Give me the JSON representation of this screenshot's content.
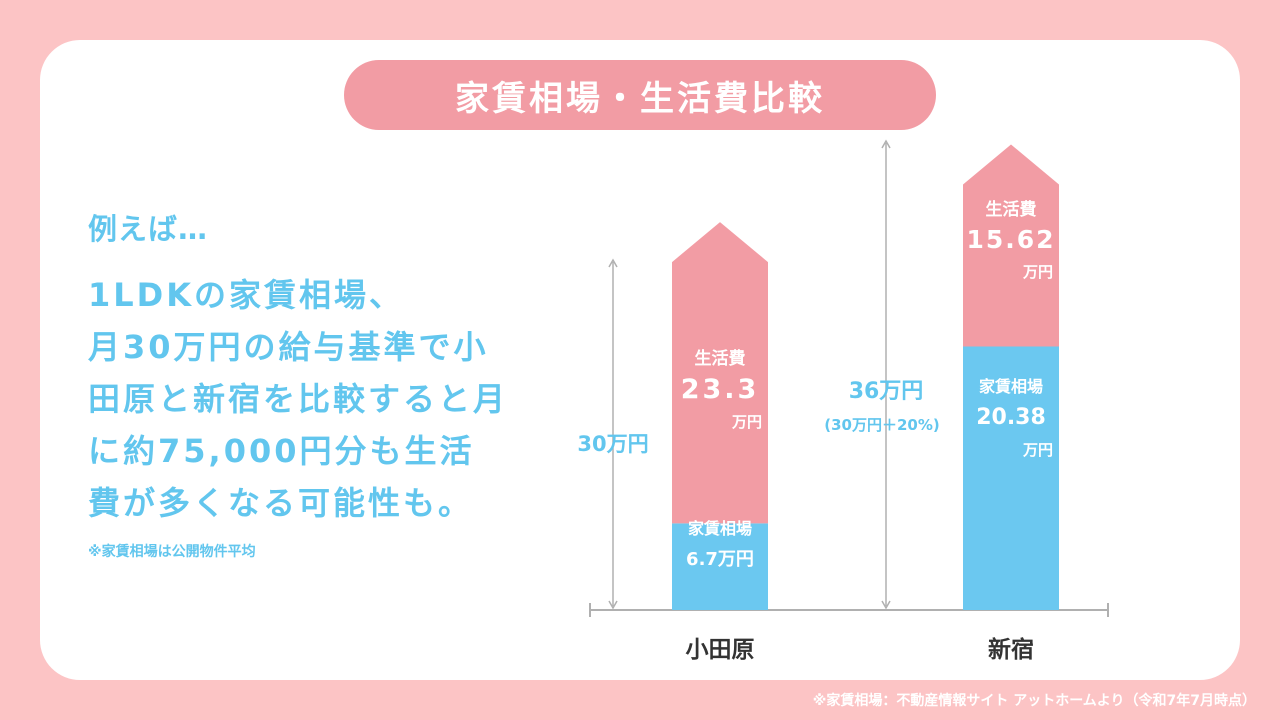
{
  "title": "家賃相場・生活費比較",
  "intro": "例えば…",
  "body_lines": [
    "1LDKの家賃相場、",
    "月30万円の給与基準で小",
    "田原と新宿を比較すると月",
    "に約75,000円分も生活",
    "費が多くなる可能性も。"
  ],
  "note": "※家賃相場は公開物件平均",
  "source": "※家賃相場：不動産情報サイト アットホームより（令和7年7月時点）",
  "colors": {
    "rent": "#6bc8f0",
    "living": "#f29ca4",
    "accent": "#62c6ee",
    "background": "#fcc4c5"
  },
  "chart_data": {
    "type": "bar",
    "stacked": true,
    "categories": [
      "小田原",
      "新宿"
    ],
    "series": [
      {
        "name": "家賃相場",
        "values": [
          6.7,
          20.38
        ]
      },
      {
        "name": "生活費",
        "values": [
          23.3,
          15.62
        ]
      }
    ],
    "totals": [
      {
        "label": "30万円",
        "sub": ""
      },
      {
        "label": "36万円",
        "sub": "(30万円＋20%)"
      }
    ],
    "labels": {
      "odawara_living_name": "生活費",
      "odawara_living_value": "23.3",
      "odawara_living_unit": "万円",
      "odawara_rent_name": "家賃相場",
      "odawara_rent_value": "6.7万円",
      "shinjuku_living_name": "生活費",
      "shinjuku_living_value": "15.62",
      "shinjuku_living_unit": "万円",
      "shinjuku_rent_name": "家賃相場",
      "shinjuku_rent_value": "20.38",
      "shinjuku_rent_unit": "万円"
    }
  }
}
